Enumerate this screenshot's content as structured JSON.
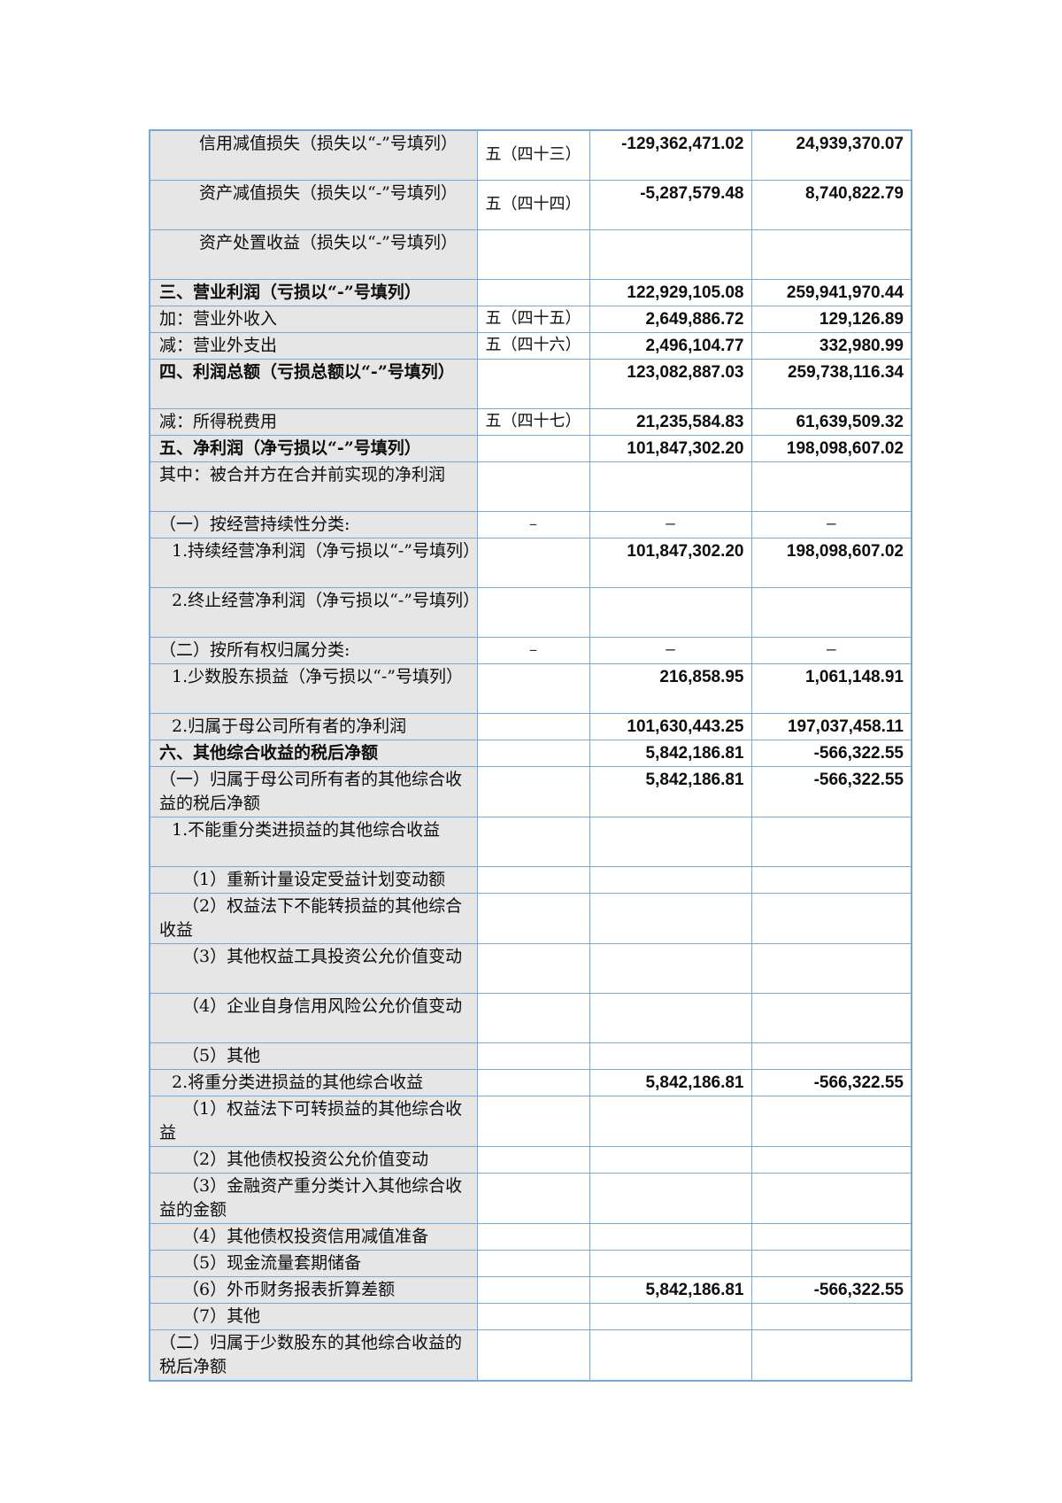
{
  "document": {
    "type": "income-statement-page",
    "language": "zh-CN"
  },
  "table": {
    "colors": {
      "border": "#74a9d8",
      "label_bg": "#e7e6e6",
      "text": "#0d0d0d",
      "page_bg": "#ffffff"
    },
    "dash": "–",
    "columns": [
      "item",
      "note",
      "current_period",
      "prior_period"
    ],
    "rows": [
      {
        "label": "信用减值损失（损失以“-”号填列）",
        "note": "五（四十三）",
        "current": "-129,362,471.02",
        "prior": "24,939,370.07",
        "indent": 3,
        "bold": false,
        "lines": 2
      },
      {
        "label": "资产减值损失（损失以“-”号填列）",
        "note": "五（四十四）",
        "current": "-5,287,579.48",
        "prior": "8,740,822.79",
        "indent": 3,
        "bold": false,
        "lines": 2
      },
      {
        "label": "资产处置收益（损失以“-”号填列）",
        "note": "",
        "current": "",
        "prior": "",
        "indent": 3,
        "bold": false,
        "lines": 2
      },
      {
        "label": "三、营业利润（亏损以“-”号填列）",
        "note": "",
        "current": "122,929,105.08",
        "prior": "259,941,970.44",
        "indent": 0,
        "bold": true,
        "lines": 1
      },
      {
        "label": "加：营业外收入",
        "note": "五（四十五）",
        "current": "2,649,886.72",
        "prior": "129,126.89",
        "indent": 0,
        "bold": false,
        "lines": 1
      },
      {
        "label": "减：营业外支出",
        "note": "五（四十六）",
        "current": "2,496,104.77",
        "prior": "332,980.99",
        "indent": 0,
        "bold": false,
        "lines": 1
      },
      {
        "label": "四、利润总额（亏损总额以“-”号填列）",
        "note": "",
        "current": "123,082,887.03",
        "prior": "259,738,116.34",
        "indent": 0,
        "bold": true,
        "lines": 2
      },
      {
        "label": "减：所得税费用",
        "note": "五（四十七）",
        "current": "21,235,584.83",
        "prior": "61,639,509.32",
        "indent": 0,
        "bold": false,
        "lines": 1
      },
      {
        "label": "五、净利润（净亏损以“-”号填列）",
        "note": "",
        "current": "101,847,302.20",
        "prior": "198,098,607.02",
        "indent": 0,
        "bold": true,
        "lines": 1
      },
      {
        "label": "其中：被合并方在合并前实现的净利润",
        "note": "",
        "current": "",
        "prior": "",
        "indent": 0,
        "bold": false,
        "lines": 2
      },
      {
        "label": "（一）按经营持续性分类:",
        "note": "–",
        "current": "–",
        "prior": "–",
        "indent": 0,
        "bold": false,
        "lines": 1
      },
      {
        "label": "1.持续经营净利润（净亏损以“-”号填列）",
        "note": "",
        "current": "101,847,302.20",
        "prior": "198,098,607.02",
        "indent": 1,
        "bold": false,
        "lines": 2
      },
      {
        "label": "2.终止经营净利润（净亏损以“-”号填列）",
        "note": "",
        "current": "",
        "prior": "",
        "indent": 1,
        "bold": false,
        "lines": 2
      },
      {
        "label": "（二）按所有权归属分类:",
        "note": "–",
        "current": "–",
        "prior": "–",
        "indent": 0,
        "bold": false,
        "lines": 1
      },
      {
        "label": "1.少数股东损益（净亏损以“-”号填列）",
        "note": "",
        "current": "216,858.95",
        "prior": "1,061,148.91",
        "indent": 1,
        "bold": false,
        "lines": 2
      },
      {
        "label": "2.归属于母公司所有者的净利润",
        "note": "",
        "current": "101,630,443.25",
        "prior": "197,037,458.11",
        "indent": 1,
        "bold": false,
        "lines": 1
      },
      {
        "label": "六、其他综合收益的税后净额",
        "note": "",
        "current": "5,842,186.81",
        "prior": "-566,322.55",
        "indent": 0,
        "bold": true,
        "lines": 1
      },
      {
        "label": "（一）归属于母公司所有者的其他综合收益的税后净额",
        "note": "",
        "current": "5,842,186.81",
        "prior": "-566,322.55",
        "indent": 0,
        "bold": false,
        "lines": 2
      },
      {
        "label": "1.不能重分类进损益的其他综合收益",
        "note": "",
        "current": "",
        "prior": "",
        "indent": 1,
        "bold": false,
        "lines": 2
      },
      {
        "label": "（1）重新计量设定受益计划变动额",
        "note": "",
        "current": "",
        "prior": "",
        "indent": 2,
        "bold": false,
        "lines": 1
      },
      {
        "label": "（2）权益法下不能转损益的其他综合收益",
        "note": "",
        "current": "",
        "prior": "",
        "indent": 2,
        "bold": false,
        "lines": 2
      },
      {
        "label": "（3）其他权益工具投资公允价值变动",
        "note": "",
        "current": "",
        "prior": "",
        "indent": 2,
        "bold": false,
        "lines": 2
      },
      {
        "label": "（4）企业自身信用风险公允价值变动",
        "note": "",
        "current": "",
        "prior": "",
        "indent": 2,
        "bold": false,
        "lines": 2
      },
      {
        "label": "（5）其他",
        "note": "",
        "current": "",
        "prior": "",
        "indent": 2,
        "bold": false,
        "lines": 1
      },
      {
        "label": "2.将重分类进损益的其他综合收益",
        "note": "",
        "current": "5,842,186.81",
        "prior": "-566,322.55",
        "indent": 1,
        "bold": false,
        "lines": 1
      },
      {
        "label": "（1）权益法下可转损益的其他综合收益",
        "note": "",
        "current": "",
        "prior": "",
        "indent": 2,
        "bold": false,
        "lines": 2
      },
      {
        "label": "（2）其他债权投资公允价值变动",
        "note": "",
        "current": "",
        "prior": "",
        "indent": 2,
        "bold": false,
        "lines": 1
      },
      {
        "label": "（3）金融资产重分类计入其他综合收益的金额",
        "note": "",
        "current": "",
        "prior": "",
        "indent": 2,
        "bold": false,
        "lines": 2
      },
      {
        "label": "（4）其他债权投资信用减值准备",
        "note": "",
        "current": "",
        "prior": "",
        "indent": 2,
        "bold": false,
        "lines": 1
      },
      {
        "label": "（5）现金流量套期储备",
        "note": "",
        "current": "",
        "prior": "",
        "indent": 2,
        "bold": false,
        "lines": 1
      },
      {
        "label": "（6）外币财务报表折算差额",
        "note": "",
        "current": "5,842,186.81",
        "prior": "-566,322.55",
        "indent": 2,
        "bold": false,
        "lines": 1
      },
      {
        "label": "（7）其他",
        "note": "",
        "current": "",
        "prior": "",
        "indent": 2,
        "bold": false,
        "lines": 1
      },
      {
        "label": "（二）归属于少数股东的其他综合收益的税后净额",
        "note": "",
        "current": "",
        "prior": "",
        "indent": 0,
        "bold": false,
        "lines": 2
      }
    ]
  }
}
